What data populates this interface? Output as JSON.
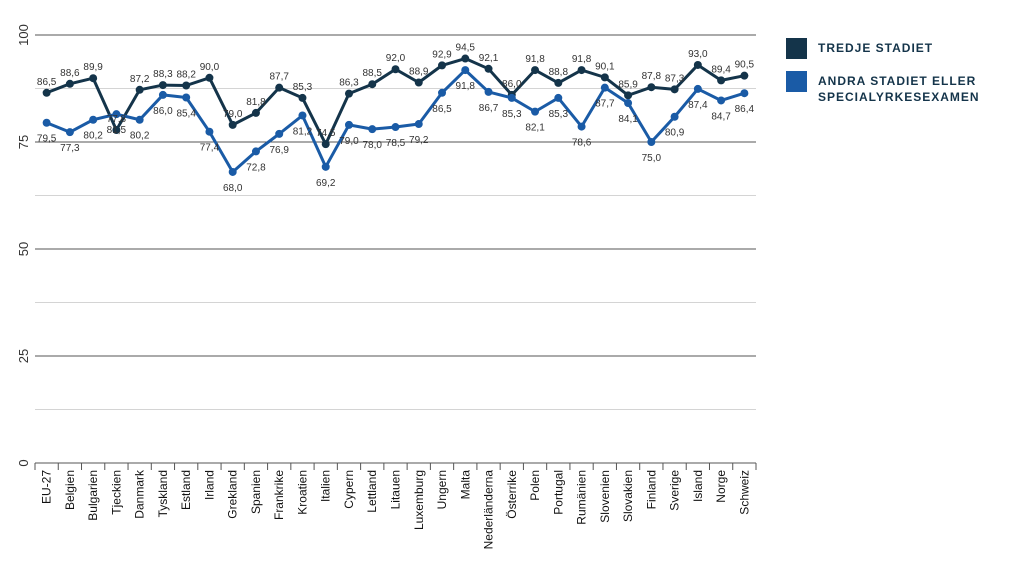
{
  "chart_data": {
    "type": "line",
    "categories": [
      "EU-27",
      "Belgien",
      "Bulgarien",
      "Tjeckien",
      "Danmark",
      "Tyskland",
      "Estland",
      "Irland",
      "Grekland",
      "Spanien",
      "Frankrike",
      "Kroatien",
      "Italien",
      "Cypern",
      "Lettland",
      "Litauen",
      "Luxemburg",
      "Ungern",
      "Malta",
      "Nederländerna",
      "Österrike",
      "Polen",
      "Portugal",
      "Rumänien",
      "Slovenien",
      "Slovakien",
      "Finland",
      "Sverige",
      "Island",
      "Norge",
      "Schweiz"
    ],
    "series": [
      {
        "name": "TREDJE STADIET",
        "color": "#14344a",
        "values": [
          86.5,
          88.6,
          89.9,
          77.8,
          87.2,
          88.3,
          88.2,
          90.0,
          79.0,
          81.8,
          87.7,
          85.3,
          74.5,
          86.3,
          88.5,
          92.0,
          88.9,
          92.9,
          94.5,
          92.1,
          86.0,
          91.8,
          88.8,
          91.8,
          90.1,
          85.9,
          87.8,
          87.3,
          93.0,
          89.4,
          90.5
        ],
        "value_labels": [
          "86,5",
          "88,6",
          "89,9",
          "77,8",
          "87,2",
          "88,3",
          "88,2",
          "90,0",
          "79,0",
          "81,8",
          "87,7",
          "85,3",
          "74,5",
          "86,3",
          "88,5",
          "92,0",
          "88,9",
          "92,9",
          "94,5",
          "92,1",
          "86,0",
          "91,8",
          "88,8",
          "91,8",
          "90,1",
          "85,9",
          "87,8",
          "87,3",
          "93,0",
          "89,4",
          "90,5"
        ]
      },
      {
        "name": "ANDRA STADIET ELLER SPECIALYRKESEXAMEN",
        "color": "#1a5ba6",
        "values": [
          79.5,
          77.3,
          80.2,
          81.5,
          80.2,
          86.0,
          85.4,
          77.4,
          68.0,
          72.8,
          76.9,
          81.2,
          69.2,
          79.0,
          78.0,
          78.5,
          79.2,
          86.5,
          91.8,
          86.7,
          85.3,
          82.1,
          85.3,
          78.6,
          87.7,
          84.1,
          75.0,
          80.9,
          87.4,
          84.7,
          86.4
        ],
        "value_labels": [
          "79,5",
          "77,3",
          "80,2",
          "81,5",
          "80,2",
          "86,0",
          "85,4",
          "77,4",
          "68,0",
          "72,8",
          "76,9",
          "81,2",
          "69,2",
          "79,0",
          "78,0",
          "78,5",
          "79,2",
          "86,5",
          "91,8",
          "86,7",
          "85,3",
          "82,1",
          "85,3",
          "78,6",
          "87,7",
          "84,1",
          "75,0",
          "80,9",
          "87,4",
          "84,7",
          "86,4"
        ]
      }
    ],
    "ylim": [
      0,
      100
    ],
    "yticks": [
      0,
      25,
      50,
      75,
      100
    ],
    "minor_yticks": [
      12.5,
      37.5,
      62.5,
      87.5
    ],
    "grid": true
  }
}
